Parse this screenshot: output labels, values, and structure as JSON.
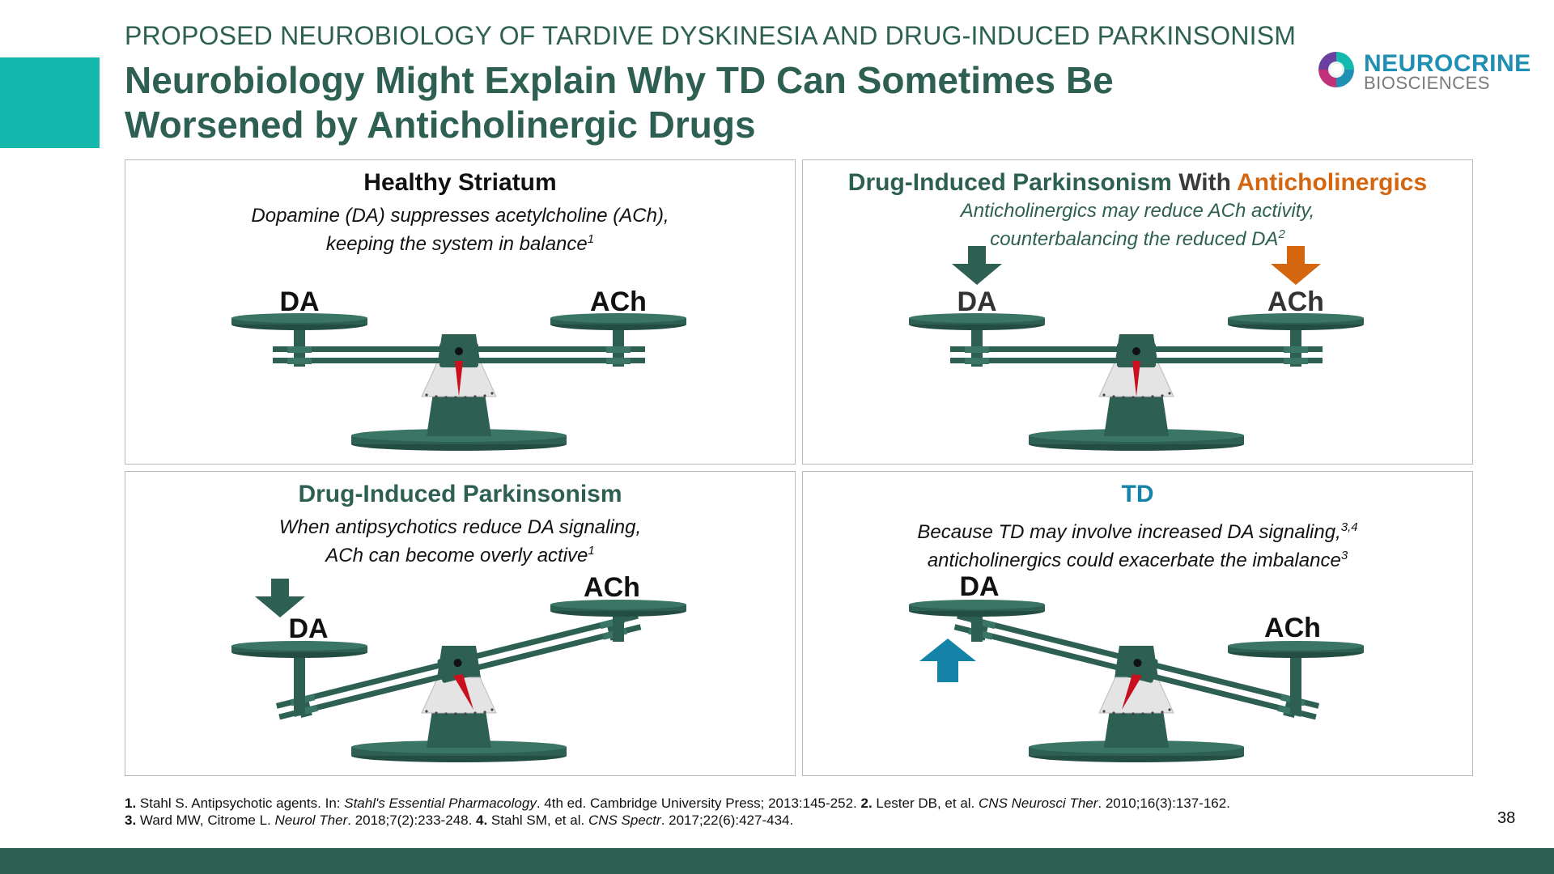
{
  "header": {
    "kicker": "PROPOSED NEUROBIOLOGY OF TARDIVE DYSKINESIA AND DRUG-INDUCED PARKINSONISM",
    "title": "Neurobiology Might Explain Why TD Can Sometimes Be Worsened by Anticholinergic Drugs"
  },
  "logo": {
    "name": "NEUROCRINE",
    "sub": "BIOSCIENCES"
  },
  "colors": {
    "accent": "#14b8ad",
    "brand_green": "#2d5f52",
    "anticholinergic_orange": "#d4660f",
    "td_blue": "#1583a8",
    "needle_red": "#c8101e"
  },
  "panels": [
    {
      "title": "Healthy Striatum",
      "desc_line1": "Dopamine (DA) suppresses acetylcholine (ACh),",
      "desc_line2": "keeping the system in balance",
      "desc_ref": "1",
      "left_label": "DA",
      "right_label": "ACh",
      "balance_state": "level"
    },
    {
      "title_part1": "Drug-Induced Parkinsonism ",
      "title_part2": "With ",
      "title_part3": "Anticholinergics",
      "desc_line1": "Anticholinergics may reduce ACh activity,",
      "desc_line2": "counterbalancing the reduced DA",
      "desc_ref": "2",
      "left_label": "DA",
      "right_label": "ACh",
      "balance_state": "level",
      "arrows": [
        {
          "target": "DA",
          "direction": "down",
          "icon": "arrow-down-icon"
        },
        {
          "target": "ACh",
          "direction": "down",
          "icon": "arrow-down-icon"
        }
      ]
    },
    {
      "title": "Drug-Induced Parkinsonism",
      "desc_line1": "When antipsychotics reduce DA signaling,",
      "desc_line2": "ACh can become overly active",
      "desc_ref": "1",
      "left_label": "DA",
      "right_label": "ACh",
      "balance_state": "tilted toward DA low, ACh high",
      "arrows": [
        {
          "target": "DA",
          "direction": "down",
          "icon": "arrow-down-icon"
        }
      ]
    },
    {
      "title": "TD",
      "desc_line1": "Because TD may involve increased DA signaling,",
      "desc_line1_ref": "3,4",
      "desc_line2": "anticholinergics could exacerbate the imbalance",
      "desc_ref": "3",
      "left_label": "DA",
      "right_label": "ACh",
      "balance_state": "tilted toward DA high, ACh low",
      "arrows": [
        {
          "target": "DA",
          "direction": "up",
          "icon": "arrow-up-icon"
        }
      ]
    }
  ],
  "references": {
    "line1": [
      {
        "t": "1.",
        "s": "b"
      },
      {
        "t": " Stahl S. Antipsychotic agents. In: ",
        "s": ""
      },
      {
        "t": "Stahl's Essential Pharmacology",
        "s": "i"
      },
      {
        "t": ". 4th ed. Cambridge University Press; 2013:145-252. ",
        "s": ""
      },
      {
        "t": "2.",
        "s": "b"
      },
      {
        "t": " Lester DB, et al. ",
        "s": ""
      },
      {
        "t": "CNS Neurosci Ther",
        "s": "i"
      },
      {
        "t": ". 2010;16(3):137-162.",
        "s": ""
      }
    ],
    "line2": [
      {
        "t": "3.",
        "s": "b"
      },
      {
        "t": " Ward MW, Citrome L. ",
        "s": ""
      },
      {
        "t": "Neurol Ther",
        "s": "i"
      },
      {
        "t": ". 2018;7(2):233-248. ",
        "s": ""
      },
      {
        "t": "4.",
        "s": "b"
      },
      {
        "t": " Stahl SM, et al. ",
        "s": ""
      },
      {
        "t": "CNS Spectr",
        "s": "i"
      },
      {
        "t": ". 2017;22(6):427-434.",
        "s": ""
      }
    ]
  },
  "page_number": "38"
}
